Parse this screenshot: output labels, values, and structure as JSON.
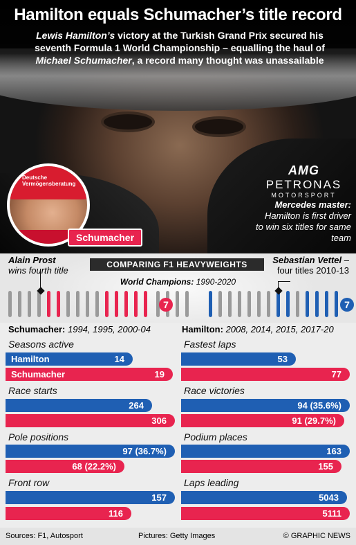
{
  "title": "Hamilton equals Schumacher’s title record",
  "subtitle": {
    "p1": "Lewis Hamilton’s",
    "p2": " victory at the Turkish Grand Prix secured his seventh Formula 1 World Championship – equalling the haul of ",
    "p3": "Michael Schumacher",
    "p4": ", a record many thought was unassailable"
  },
  "amg": {
    "l1": "AMG",
    "l2": "PETRONAS",
    "l3": "MOTORSPORT"
  },
  "mercedes": {
    "head": "Mercedes master:",
    "body": "Hamilton is first driver to win six titles for same team"
  },
  "schumacher_tag": "Schumacher",
  "prost": {
    "name": "Alain Prost",
    "desc": "wins fourth title"
  },
  "vettel": {
    "name": "Sebastian Vettel",
    "desc": " – four titles 2010-13"
  },
  "compare_label": "COMPARING F1 HEAVYWEIGHTS",
  "champs": {
    "label": "World Champions:",
    "range": " 1990-2020"
  },
  "years_left": {
    "name": "Schumacher:",
    "years": " 1994, 1995, 2000-04"
  },
  "years_right": {
    "name": "Hamilton:",
    "years": " 2008, 2014, 2015, 2017-20"
  },
  "seven_left": "7",
  "seven_right": "7",
  "legend": {
    "hamilton": "Hamilton",
    "schumacher": "Schumacher"
  },
  "stats": {
    "seasons": {
      "label": "Seasons active",
      "hamilton": "14",
      "schumacher": "19"
    },
    "starts": {
      "label": "Race starts",
      "hamilton": "264",
      "schumacher": "306"
    },
    "poles": {
      "label": "Pole positions",
      "hamilton": "97 (36.7%)",
      "schumacher": "68 (22.2%)"
    },
    "front_row": {
      "label": "Front row",
      "hamilton": "157",
      "schumacher": "116"
    },
    "fastest": {
      "label": "Fastest laps",
      "hamilton": "53",
      "schumacher": "77"
    },
    "victories": {
      "label": "Race victories",
      "hamilton": "94 (35.6%)",
      "schumacher": "91 (29.7%)"
    },
    "podiums": {
      "label": "Podium places",
      "hamilton": "163",
      "schumacher": "155"
    },
    "laps": {
      "label": "Laps leading",
      "hamilton": "5043",
      "schumacher": "5111"
    }
  },
  "footer": {
    "sources": "Sources: F1, Autosport",
    "pictures": "Pictures: Getty Images",
    "credit": "© GRAPHIC NEWS"
  },
  "colors": {
    "hamilton": "#1f5fb3",
    "schumacher": "#e8244f",
    "other": "#9a9a9a"
  }
}
